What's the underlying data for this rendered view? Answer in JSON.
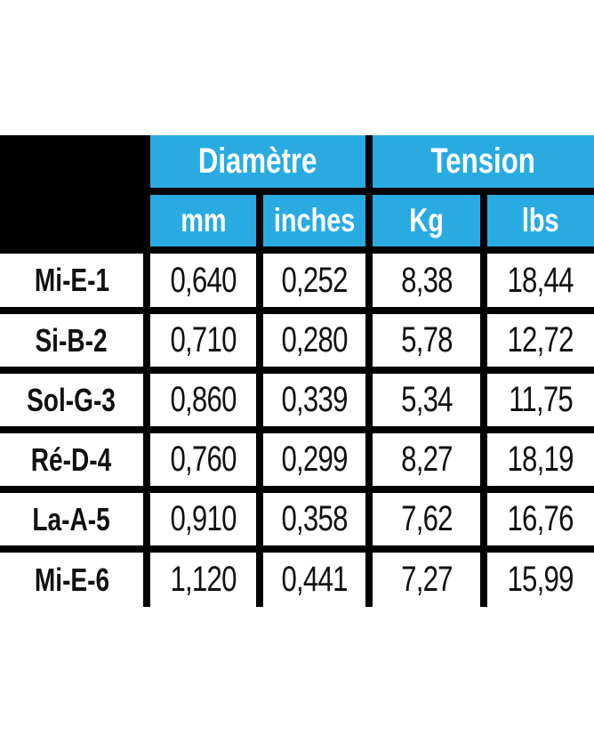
{
  "chart_data": {
    "type": "table",
    "group_headers": [
      "Diamètre",
      "Tension"
    ],
    "columns": [
      "mm",
      "inches",
      "Kg",
      "lbs"
    ],
    "rows": [
      {
        "label": "Mi-E-1",
        "values": [
          "0,640",
          "0,252",
          "8,38",
          "18,44"
        ]
      },
      {
        "label": "Si-B-2",
        "values": [
          "0,710",
          "0,280",
          "5,78",
          "12,72"
        ]
      },
      {
        "label": "Sol-G-3",
        "values": [
          "0,860",
          "0,339",
          "5,34",
          "11,75"
        ]
      },
      {
        "label": "Ré-D-4",
        "values": [
          "0,760",
          "0,299",
          "8,27",
          "18,19"
        ]
      },
      {
        "label": "La-A-5",
        "values": [
          "0,910",
          "0,358",
          "7,62",
          "16,76"
        ]
      },
      {
        "label": "Mi-E-6",
        "values": [
          "1,120",
          "0,441",
          "7,27",
          "15,99"
        ]
      }
    ],
    "layout": "grouped-header table, thick black gridlines, no outer border, last row unbordered at bottom"
  },
  "colors": {
    "accent_cyan": "#29ABE2",
    "grid_black": "#000000",
    "header_text": "#FFFFFF",
    "body_text": "#111111",
    "background": "#FFFFFF"
  }
}
